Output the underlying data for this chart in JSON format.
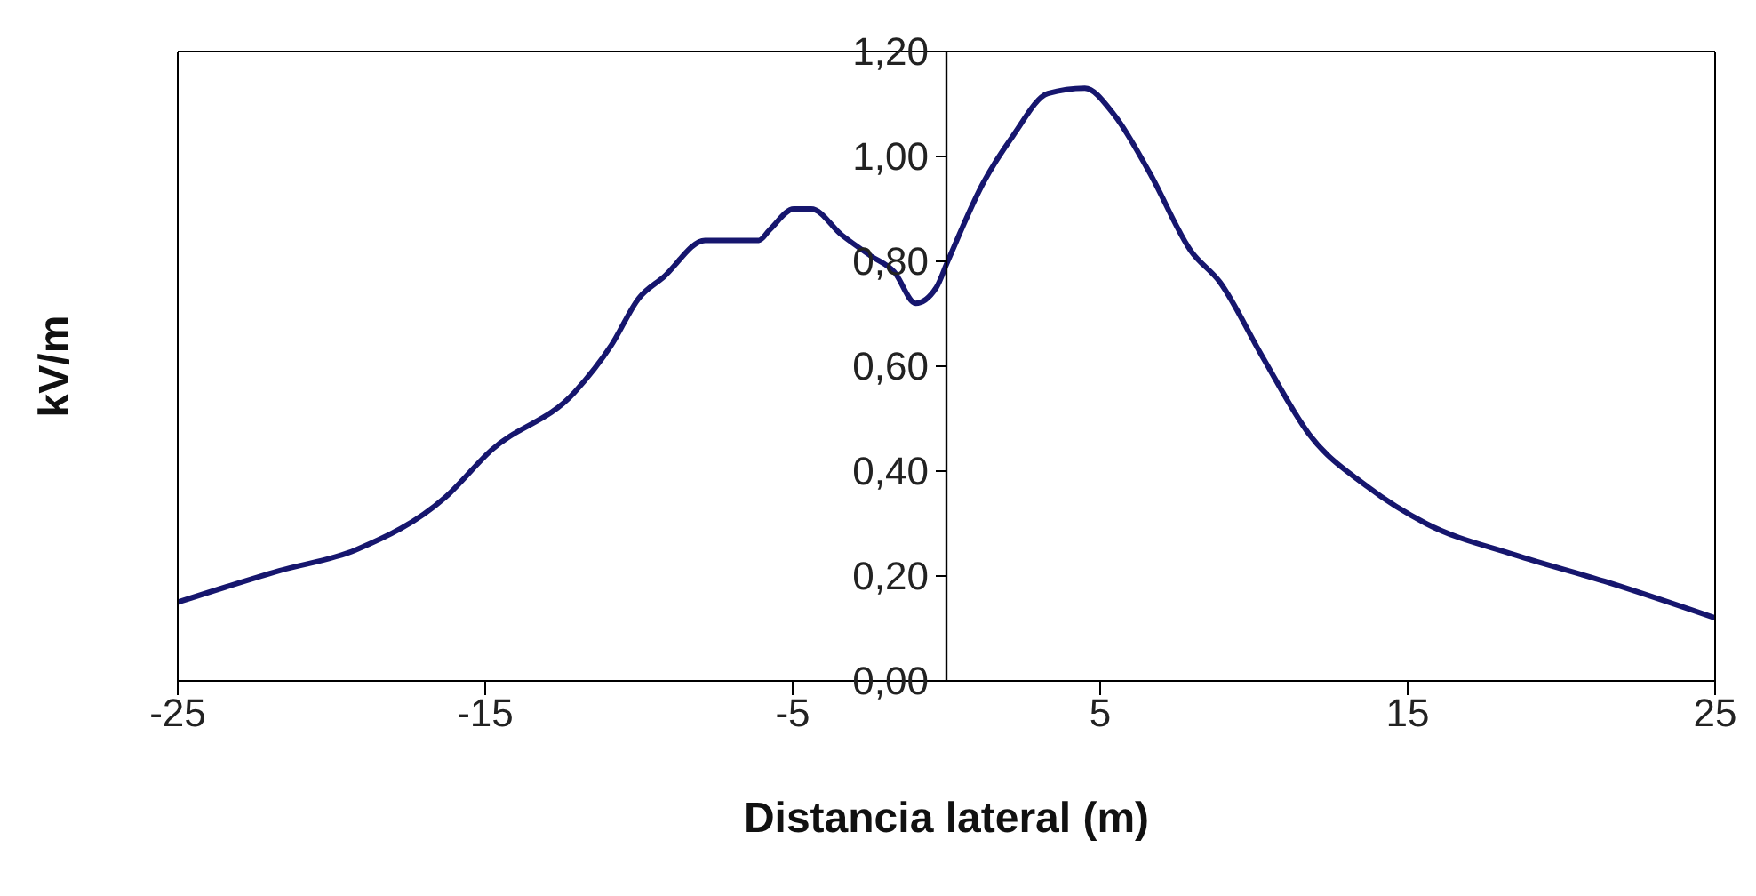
{
  "chart_data": {
    "type": "line",
    "xlabel": "Distancia lateral (m)",
    "ylabel": "kV/m",
    "xlim": [
      -25,
      25
    ],
    "xticks": [
      -25,
      -15,
      -5,
      5,
      15,
      25
    ],
    "ylim": [
      0,
      1.2
    ],
    "yticks": [
      {
        "value": 0,
        "label": "0,00"
      },
      {
        "value": 0.2,
        "label": "0,20"
      },
      {
        "value": 0.4,
        "label": "0,40"
      },
      {
        "value": 0.6,
        "label": "0,60"
      },
      {
        "value": 0.8,
        "label": "0,80"
      },
      {
        "value": 1.0,
        "label": "1,00"
      },
      {
        "value": 1.2,
        "label": "1,20"
      }
    ],
    "marker": "none",
    "line_style": "solid",
    "series": [
      {
        "color": "#16166e",
        "x": [
          -25,
          -21.7,
          -19.2,
          -16.3,
          -14.8,
          -12.1,
          -10.9,
          -10,
          -9.2,
          -7.85,
          -6.1,
          -5.75,
          -4.96,
          -4.4,
          -3.4,
          -2.45,
          -1.7,
          -1,
          -0.33,
          0.04,
          1.2,
          2.17,
          3.3,
          4.5,
          5.45,
          6.6,
          7.95,
          8.9,
          10.26,
          11.8,
          13.7,
          15.6,
          18.5,
          21.4,
          25
        ],
        "values": [
          0.15,
          0.21,
          0.25,
          0.35,
          0.44,
          0.55,
          0.64,
          0.73,
          0.77,
          0.84,
          0.84,
          0.86,
          0.9,
          0.9,
          0.85,
          0.81,
          0.78,
          0.72,
          0.75,
          0.8,
          0.95,
          1.04,
          1.12,
          1.13,
          1.08,
          0.97,
          0.82,
          0.76,
          0.62,
          0.47,
          0.37,
          0.3,
          0.24,
          0.19,
          0.12
        ]
      }
    ]
  }
}
